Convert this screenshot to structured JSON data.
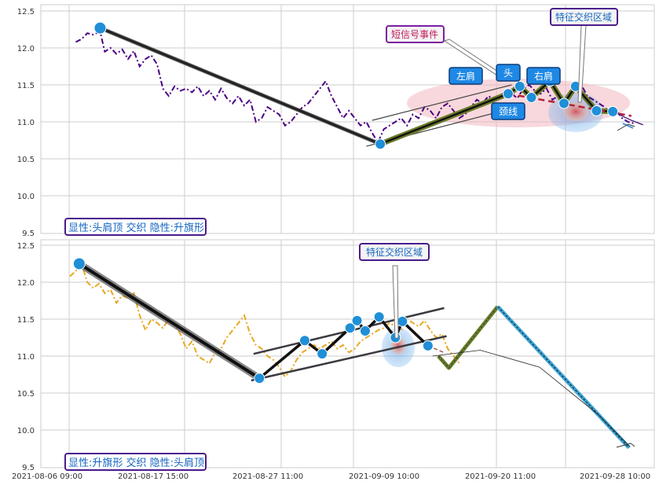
{
  "chart_data": [
    {
      "type": "line",
      "panel": "top",
      "ylim": [
        9.5,
        12.55
      ],
      "y_ticks": [
        "12.5",
        "12.0",
        "11.5",
        "11.0",
        "10.5",
        "10.0",
        "9.5"
      ],
      "grid": true,
      "series": [
        {
          "color": "#4b0082",
          "style": "dash-dot",
          "points": [
            [
              0.5,
              12.08
            ],
            [
              1,
              12.12
            ],
            [
              1.5,
              12.2
            ],
            [
              2,
              12.18
            ],
            [
              2.6,
              12.22
            ],
            [
              3,
              11.95
            ],
            [
              3.5,
              12.0
            ],
            [
              4,
              11.92
            ],
            [
              4.5,
              11.98
            ],
            [
              5,
              11.85
            ],
            [
              5.5,
              11.96
            ],
            [
              6,
              11.75
            ],
            [
              6.5,
              11.85
            ],
            [
              7,
              11.9
            ],
            [
              7.5,
              11.78
            ],
            [
              8,
              11.45
            ],
            [
              8.5,
              11.35
            ],
            [
              9,
              11.48
            ],
            [
              9.5,
              11.42
            ],
            [
              10,
              11.45
            ],
            [
              10.5,
              11.4
            ],
            [
              11,
              11.48
            ],
            [
              11.5,
              11.35
            ],
            [
              12,
              11.42
            ],
            [
              12.5,
              11.3
            ],
            [
              13,
              11.45
            ],
            [
              13.5,
              11.32
            ],
            [
              14,
              11.25
            ],
            [
              14.5,
              11.35
            ],
            [
              15,
              11.22
            ],
            [
              15.5,
              11.3
            ],
            [
              16,
              11.0
            ],
            [
              16.5,
              11.05
            ],
            [
              17,
              11.2
            ],
            [
              17.5,
              11.15
            ],
            [
              18,
              11.1
            ],
            [
              18.5,
              10.95
            ],
            [
              19,
              11.0
            ],
            [
              19.5,
              11.1
            ],
            [
              20,
              11.2
            ],
            [
              20.5,
              11.25
            ],
            [
              21,
              11.35
            ],
            [
              21.5,
              11.45
            ],
            [
              22,
              11.55
            ],
            [
              22.5,
              11.35
            ],
            [
              23,
              11.2
            ],
            [
              23.5,
              11.05
            ],
            [
              24,
              11.15
            ],
            [
              24.5,
              11.05
            ],
            [
              25,
              10.95
            ],
            [
              25.5,
              11.0
            ],
            [
              26,
              10.85
            ],
            [
              26.5,
              10.72
            ],
            [
              27,
              10.9
            ],
            [
              27.5,
              10.95
            ],
            [
              28,
              11.0
            ],
            [
              28.5,
              11.05
            ],
            [
              29,
              10.95
            ],
            [
              29.5,
              11.1
            ],
            [
              30,
              11.05
            ],
            [
              30.5,
              11.2
            ],
            [
              31,
              11.15
            ],
            [
              31.5,
              11.05
            ],
            [
              32,
              11.2
            ],
            [
              32.5,
              11.25
            ],
            [
              33,
              11.15
            ],
            [
              33.5,
              11.05
            ],
            [
              34,
              11.1
            ],
            [
              34.5,
              11.2
            ],
            [
              35,
              11.3
            ],
            [
              35.5,
              11.25
            ],
            [
              36,
              11.35
            ],
            [
              36.5,
              11.3
            ],
            [
              37,
              11.35
            ],
            [
              37.5,
              11.42
            ],
            [
              38,
              11.38
            ],
            [
              38.5,
              11.32
            ],
            [
              39,
              11.45
            ],
            [
              39.5,
              11.5
            ],
            [
              40,
              11.42
            ],
            [
              40.5,
              11.38
            ],
            [
              41,
              11.45
            ],
            [
              41.5,
              11.3
            ],
            [
              42,
              11.35
            ],
            [
              42.5,
              11.25
            ],
            [
              43,
              11.4
            ],
            [
              43.5,
              11.45
            ],
            [
              44,
              11.5
            ],
            [
              44.5,
              11.35
            ],
            [
              45,
              11.3
            ],
            [
              45.5,
              11.25
            ],
            [
              46,
              11.2
            ],
            [
              46.5,
              11.1
            ],
            [
              47,
              11.15
            ],
            [
              47.5,
              11.05
            ],
            [
              48,
              11.0
            ],
            [
              48.5,
              10.98
            ]
          ]
        }
      ],
      "pattern_lines": [
        {
          "role": "trend",
          "points": [
            [
              2.6,
              12.27
            ],
            [
              26.7,
              10.7
            ]
          ]
        },
        {
          "role": "channel-upper",
          "points": [
            [
              26,
              11.02
            ],
            [
              38,
              11.5
            ]
          ]
        },
        {
          "role": "channel-lower",
          "points": [
            [
              25.5,
              10.67
            ],
            [
              38.5,
              11.2
            ]
          ]
        },
        {
          "role": "head-shoulders",
          "points": [
            [
              26.7,
              10.7
            ],
            [
              37.7,
              11.38
            ],
            [
              38.7,
              11.48
            ],
            [
              39.7,
              11.33
            ],
            [
              41.3,
              11.55
            ],
            [
              42.5,
              11.25
            ],
            [
              43.5,
              11.48
            ],
            [
              45.3,
              11.15
            ],
            [
              46.7,
              11.14
            ]
          ]
        },
        {
          "role": "neckline",
          "points": [
            [
              37.7,
              11.38
            ],
            [
              48.3,
              11.08
            ]
          ]
        },
        {
          "role": "projection",
          "points": [
            [
              46.7,
              11.14
            ],
            [
              48.3,
              11.02
            ],
            [
              49.3,
              10.96
            ]
          ]
        }
      ],
      "markers": [
        {
          "x": 2.6,
          "y": 12.27
        },
        {
          "x": 26.7,
          "y": 10.7
        },
        {
          "x": 37.7,
          "y": 11.38
        },
        {
          "x": 38.7,
          "y": 11.48
        },
        {
          "x": 39.7,
          "y": 11.33
        },
        {
          "x": 41.3,
          "y": 11.55
        },
        {
          "x": 42.5,
          "y": 11.25
        },
        {
          "x": 43.5,
          "y": 11.48
        },
        {
          "x": 45.3,
          "y": 11.15
        },
        {
          "x": 46.7,
          "y": 11.14
        }
      ],
      "annotations": [
        {
          "text": "短信号事件"
        },
        {
          "text": "特征交织区域"
        },
        {
          "text": "左肩"
        },
        {
          "text": "头"
        },
        {
          "text": "右肩"
        },
        {
          "text": "颈线"
        }
      ],
      "panel_label": "显性:头肩顶 交织 隐性:升旗形"
    },
    {
      "type": "line",
      "panel": "bottom",
      "ylim": [
        9.5,
        12.55
      ],
      "y_ticks": [
        "12.5",
        "12.0",
        "11.5",
        "11.0",
        "10.5",
        "10.0",
        "9.5"
      ],
      "grid": true,
      "x_ticks": [
        "2021-08-06 09:00",
        "2021-08-17 15:00",
        "2021-08-27 11:00",
        "2021-09-09 10:00",
        "2021-09-20 11:00",
        "2021-09-28 10:00"
      ],
      "series": [
        {
          "color": "#e8a820",
          "style": "dash-dot",
          "points": [
            [
              0,
              12.08
            ],
            [
              0.5,
              12.15
            ],
            [
              1,
              12.25
            ],
            [
              1.5,
              12.0
            ],
            [
              2,
              11.92
            ],
            [
              2.5,
              11.98
            ],
            [
              3,
              11.85
            ],
            [
              3.5,
              11.9
            ],
            [
              4,
              11.72
            ],
            [
              4.5,
              11.82
            ],
            [
              5,
              11.78
            ],
            [
              5.5,
              11.85
            ],
            [
              6,
              11.55
            ],
            [
              6.5,
              11.35
            ],
            [
              7,
              11.5
            ],
            [
              7.5,
              11.45
            ],
            [
              8,
              11.38
            ],
            [
              8.5,
              11.5
            ],
            [
              9,
              11.42
            ],
            [
              9.5,
              11.3
            ],
            [
              10,
              11.1
            ],
            [
              10.5,
              11.2
            ],
            [
              11,
              11.0
            ],
            [
              11.5,
              10.95
            ],
            [
              12,
              10.9
            ],
            [
              12.5,
              11.05
            ],
            [
              13,
              11.1
            ],
            [
              13.5,
              11.25
            ],
            [
              14,
              11.35
            ],
            [
              14.5,
              11.45
            ],
            [
              15,
              11.55
            ],
            [
              15.5,
              11.3
            ],
            [
              16,
              11.15
            ],
            [
              16.5,
              11.1
            ],
            [
              17,
              11.0
            ],
            [
              17.5,
              10.95
            ],
            [
              18,
              10.85
            ],
            [
              18.5,
              10.72
            ],
            [
              19,
              10.8
            ],
            [
              19.5,
              10.95
            ],
            [
              20,
              11.05
            ],
            [
              20.5,
              11.1
            ],
            [
              21,
              11.15
            ],
            [
              21.5,
              11.1
            ],
            [
              22,
              11.15
            ],
            [
              22.5,
              11.2
            ],
            [
              23,
              11.1
            ],
            [
              23.5,
              11.15
            ],
            [
              24,
              11.05
            ],
            [
              24.5,
              11.1
            ],
            [
              25,
              11.2
            ],
            [
              25.5,
              11.25
            ],
            [
              26,
              11.3
            ],
            [
              26.5,
              11.35
            ],
            [
              27,
              11.38
            ],
            [
              27.5,
              11.45
            ],
            [
              28,
              11.4
            ],
            [
              28.5,
              11.35
            ],
            [
              29,
              11.5
            ],
            [
              29.5,
              11.45
            ],
            [
              30,
              11.4
            ],
            [
              30.5,
              11.48
            ],
            [
              31,
              11.35
            ],
            [
              31.5,
              11.25
            ],
            [
              32,
              11.3
            ],
            [
              32.5,
              11.1
            ],
            [
              33,
              11.0
            ],
            [
              33.5,
              10.9
            ]
          ]
        }
      ],
      "pattern_lines": [
        {
          "role": "trend",
          "points": [
            [
              0.8,
              12.25
            ],
            [
              16.3,
              10.7
            ]
          ]
        },
        {
          "role": "flag-upper",
          "points": [
            [
              15.8,
              11.03
            ],
            [
              32.2,
              11.65
            ]
          ]
        },
        {
          "role": "flag-lower",
          "points": [
            [
              15.6,
              10.67
            ],
            [
              32.4,
              11.27
            ]
          ]
        },
        {
          "role": "flag-path",
          "points": [
            [
              16.3,
              10.7
            ],
            [
              20.2,
              11.21
            ],
            [
              21.7,
              11.03
            ],
            [
              24.1,
              11.38
            ],
            [
              24.7,
              11.48
            ],
            [
              25.4,
              11.34
            ],
            [
              26.6,
              11.53
            ],
            [
              28,
              11.25
            ],
            [
              28.6,
              11.47
            ],
            [
              30.8,
              11.14
            ]
          ]
        },
        {
          "role": "hidden-projection",
          "points": [
            [
              31.7,
              11.0
            ],
            [
              32.6,
              10.84
            ],
            [
              36.8,
              11.67
            ],
            [
              48.1,
              9.76
            ]
          ]
        },
        {
          "role": "target-arc",
          "points": [
            [
              31.2,
              11.0
            ],
            [
              35.3,
              11.08
            ],
            [
              40.4,
              10.85
            ],
            [
              45.5,
              10.2
            ],
            [
              48.2,
              9.77
            ]
          ]
        }
      ],
      "markers": [
        {
          "x": 0.8,
          "y": 12.25
        },
        {
          "x": 16.3,
          "y": 10.7
        },
        {
          "x": 20.2,
          "y": 11.21
        },
        {
          "x": 21.7,
          "y": 11.03
        },
        {
          "x": 24.1,
          "y": 11.38
        },
        {
          "x": 24.7,
          "y": 11.48
        },
        {
          "x": 25.4,
          "y": 11.34
        },
        {
          "x": 26.6,
          "y": 11.53
        },
        {
          "x": 28,
          "y": 11.25
        },
        {
          "x": 28.6,
          "y": 11.47
        },
        {
          "x": 30.8,
          "y": 11.14
        }
      ],
      "annotations": [
        {
          "text": "特征交织区域"
        }
      ],
      "panel_label": "显性:升旗形 交织 隐性:头肩顶"
    }
  ]
}
